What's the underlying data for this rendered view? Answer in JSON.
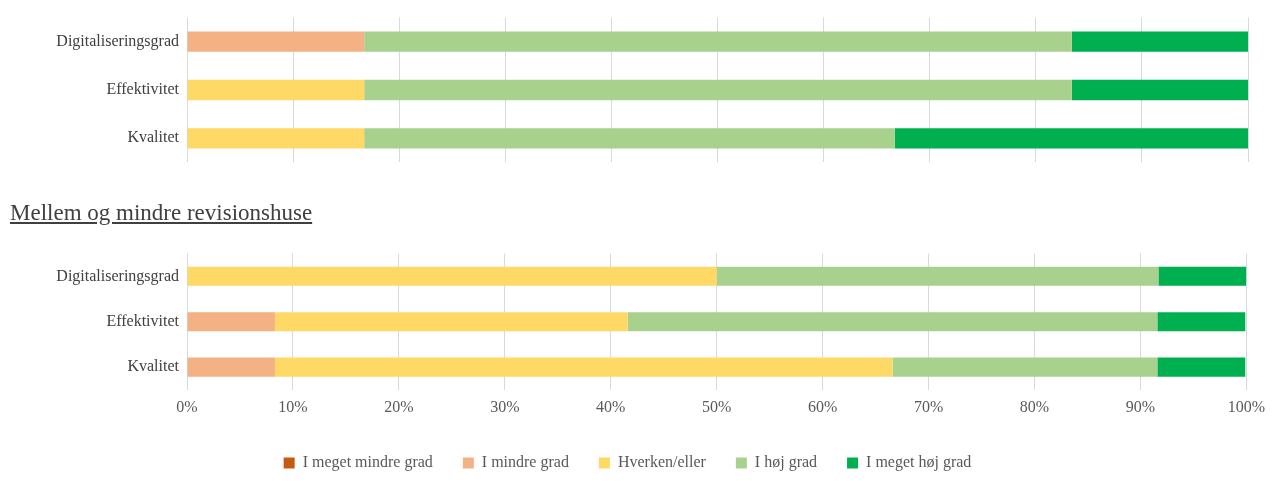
{
  "chart_data": [
    {
      "type": "bar",
      "orientation": "horizontal",
      "stacked": true,
      "categories": [
        "Digitaliseringsgrad",
        "Effektivitet",
        "Kvalitet"
      ],
      "series": [
        {
          "color": "#c55a11",
          "values": [
            0,
            0,
            0
          ]
        },
        {
          "color": "#f4b183",
          "values": [
            16.7,
            0,
            0
          ]
        },
        {
          "color": "#ffd966",
          "values": [
            0,
            16.7,
            16.7
          ]
        },
        {
          "color": "#a9d18e",
          "values": [
            66.7,
            66.7,
            50
          ]
        },
        {
          "color": "#00b050",
          "values": [
            16.7,
            16.7,
            33.3
          ]
        }
      ],
      "xlim": [
        0,
        100
      ],
      "xticks": [
        {
          "value": 0,
          "label": null
        },
        {
          "value": 10,
          "label": null
        },
        {
          "value": 20,
          "label": null
        },
        {
          "value": 30,
          "label": null
        },
        {
          "value": 40,
          "label": null
        },
        {
          "value": 50,
          "label": null
        },
        {
          "value": 60,
          "label": null
        },
        {
          "value": 70,
          "label": null
        },
        {
          "value": 80,
          "label": null
        },
        {
          "value": 90,
          "label": null
        },
        {
          "value": 100,
          "label": null
        }
      ],
      "grid": "x",
      "tick_labels": "y",
      "legend": false
    },
    {
      "type": "bar",
      "orientation": "horizontal",
      "stacked": true,
      "title": "Mellem og mindre revisionshuse",
      "categories": [
        "Digitaliseringsgrad",
        "Effektivitet",
        "Kvalitet"
      ],
      "series": [
        {
          "name": "I meget mindre grad",
          "color": "#c55a11",
          "values": [
            0,
            0,
            0
          ]
        },
        {
          "name": "I mindre grad",
          "color": "#f4b183",
          "values": [
            0,
            8.3,
            8.3
          ]
        },
        {
          "name": "Hverken/eller",
          "color": "#ffd966",
          "values": [
            50,
            33.3,
            58.3
          ]
        },
        {
          "name": "I høj grad",
          "color": "#a9d18e",
          "values": [
            41.7,
            50,
            25
          ]
        },
        {
          "name": "I meget høj grad",
          "color": "#00b050",
          "values": [
            8.3,
            8.3,
            8.3
          ]
        }
      ],
      "xlim": [
        0,
        100
      ],
      "xticks": [
        {
          "value": 0,
          "label": "0%"
        },
        {
          "value": 10,
          "label": "10%"
        },
        {
          "value": 20,
          "label": "20%"
        },
        {
          "value": 30,
          "label": "30%"
        },
        {
          "value": 40,
          "label": "40%"
        },
        {
          "value": 50,
          "label": "50%"
        },
        {
          "value": 60,
          "label": "60%"
        },
        {
          "value": 70,
          "label": "70%"
        },
        {
          "value": 80,
          "label": "80%"
        },
        {
          "value": 90,
          "label": "90%"
        },
        {
          "value": 100,
          "label": "100%"
        }
      ],
      "grid": "x",
      "legend": "bottom"
    }
  ]
}
